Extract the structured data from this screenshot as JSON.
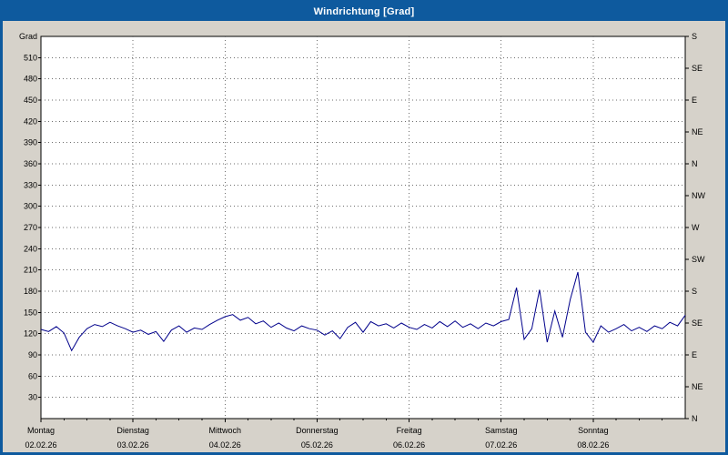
{
  "window": {
    "title": "Windrichtung [Grad]"
  },
  "colors": {
    "frame": "#0e5a9e",
    "titlebar": "#0e5a9e",
    "title_text": "#ffffff",
    "outer_bg": "#d6d2ca",
    "plot_bg": "#ffffff",
    "grid": "#6e6e6e",
    "axis": "#000000",
    "line": "#00008b"
  },
  "chart_data": {
    "type": "line",
    "title": "Windrichtung [Grad]",
    "ylabel": "Grad",
    "ylim": [
      0,
      540
    ],
    "y_tick_step": 30,
    "y_tick_labels": [
      "510",
      "480",
      "450",
      "420",
      "390",
      "360",
      "330",
      "300",
      "270",
      "240",
      "210",
      "180",
      "150",
      "120",
      "90",
      "60",
      "30"
    ],
    "y2_tick_step_deg": 45,
    "y2_labels_bottom_to_top": [
      "N",
      "NE",
      "E",
      "SE",
      "S",
      "SW",
      "W",
      "NW",
      "N",
      "NE",
      "E",
      "SE",
      "S"
    ],
    "grid": "dashed",
    "legend": "none",
    "x_hours_range": [
      0,
      168
    ],
    "x_days": [
      {
        "name": "Montag",
        "date": "02.02.26"
      },
      {
        "name": "Dienstag",
        "date": "03.02.26"
      },
      {
        "name": "Mittwoch",
        "date": "04.02.26"
      },
      {
        "name": "Donnerstag",
        "date": "05.02.26"
      },
      {
        "name": "Freitag",
        "date": "06.02.26"
      },
      {
        "name": "Samstag",
        "date": "07.02.26"
      },
      {
        "name": "Sonntag",
        "date": "08.02.26"
      }
    ],
    "series": [
      {
        "name": "Windrichtung",
        "color": "#00008b",
        "x_hours": [
          0,
          2,
          4,
          6,
          8,
          10,
          12,
          14,
          16,
          18,
          20,
          22,
          24,
          26,
          28,
          30,
          32,
          34,
          36,
          38,
          40,
          42,
          44,
          46,
          48,
          50,
          52,
          54,
          56,
          58,
          60,
          62,
          64,
          66,
          68,
          70,
          72,
          74,
          76,
          78,
          80,
          82,
          84,
          86,
          88,
          90,
          92,
          94,
          96,
          98,
          100,
          102,
          104,
          106,
          108,
          110,
          112,
          114,
          116,
          118,
          120,
          122,
          124,
          126,
          128,
          130,
          132,
          134,
          136,
          138,
          140,
          142,
          144,
          146,
          148,
          150,
          152,
          154,
          156,
          158,
          160,
          162,
          164,
          166,
          168
        ],
        "values_deg": [
          126,
          123,
          130,
          121,
          96,
          115,
          127,
          133,
          130,
          136,
          131,
          127,
          122,
          125,
          119,
          123,
          109,
          125,
          131,
          122,
          128,
          126,
          133,
          139,
          144,
          147,
          139,
          143,
          134,
          138,
          129,
          135,
          128,
          124,
          131,
          127,
          125,
          118,
          124,
          113,
          129,
          136,
          122,
          137,
          131,
          134,
          128,
          135,
          129,
          126,
          133,
          128,
          137,
          130,
          138,
          129,
          134,
          127,
          135,
          131,
          137,
          140,
          185,
          112,
          127,
          182,
          108,
          152,
          115,
          168,
          207,
          122,
          108,
          131,
          122,
          127,
          133,
          124,
          129,
          123,
          131,
          127,
          136,
          131,
          146
        ]
      }
    ]
  }
}
